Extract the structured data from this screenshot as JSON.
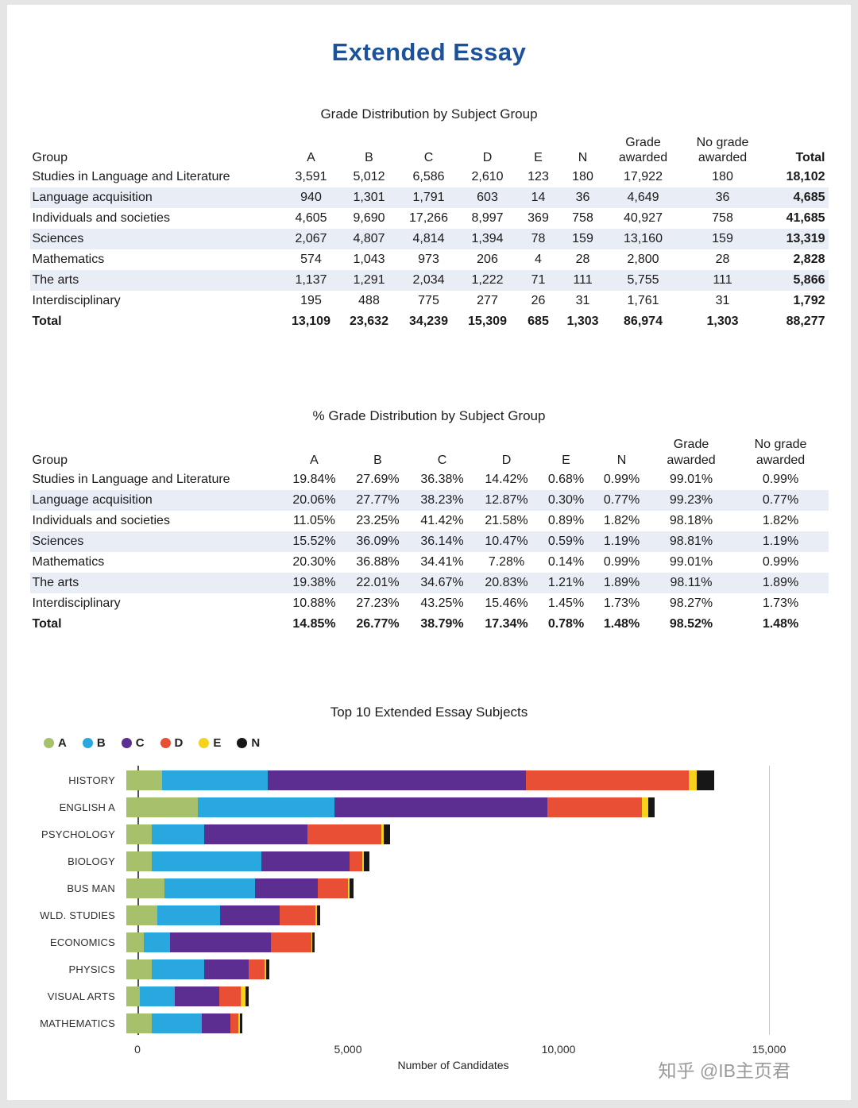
{
  "page": {
    "title": "Extended Essay",
    "watermark": "知乎 @IB主页君"
  },
  "table1": {
    "title": "Grade Distribution by Subject Group",
    "columns": [
      "Group",
      "A",
      "B",
      "C",
      "D",
      "E",
      "N",
      "Grade awarded",
      "No grade awarded",
      "Total"
    ],
    "rows": [
      [
        "Studies in Language and Literature",
        "3,591",
        "5,012",
        "6,586",
        "2,610",
        "123",
        "180",
        "17,922",
        "180",
        "18,102"
      ],
      [
        "Language acquisition",
        "940",
        "1,301",
        "1,791",
        "603",
        "14",
        "36",
        "4,649",
        "36",
        "4,685"
      ],
      [
        "Individuals and societies",
        "4,605",
        "9,690",
        "17,266",
        "8,997",
        "369",
        "758",
        "40,927",
        "758",
        "41,685"
      ],
      [
        "Sciences",
        "2,067",
        "4,807",
        "4,814",
        "1,394",
        "78",
        "159",
        "13,160",
        "159",
        "13,319"
      ],
      [
        "Mathematics",
        "574",
        "1,043",
        "973",
        "206",
        "4",
        "28",
        "2,800",
        "28",
        "2,828"
      ],
      [
        "The arts",
        "1,137",
        "1,291",
        "2,034",
        "1,222",
        "71",
        "111",
        "5,755",
        "111",
        "5,866"
      ],
      [
        "Interdisciplinary",
        "195",
        "488",
        "775",
        "277",
        "26",
        "31",
        "1,761",
        "31",
        "1,792"
      ],
      [
        "Total",
        "13,109",
        "23,632",
        "34,239",
        "15,309",
        "685",
        "1,303",
        "86,974",
        "1,303",
        "88,277"
      ]
    ]
  },
  "table2": {
    "title": "% Grade Distribution by Subject Group",
    "columns": [
      "Group",
      "A",
      "B",
      "C",
      "D",
      "E",
      "N",
      "Grade awarded",
      "No grade awarded"
    ],
    "rows": [
      [
        "Studies in Language and Literature",
        "19.84%",
        "27.69%",
        "36.38%",
        "14.42%",
        "0.68%",
        "0.99%",
        "99.01%",
        "0.99%"
      ],
      [
        "Language acquisition",
        "20.06%",
        "27.77%",
        "38.23%",
        "12.87%",
        "0.30%",
        "0.77%",
        "99.23%",
        "0.77%"
      ],
      [
        "Individuals and societies",
        "11.05%",
        "23.25%",
        "41.42%",
        "21.58%",
        "0.89%",
        "1.82%",
        "98.18%",
        "1.82%"
      ],
      [
        "Sciences",
        "15.52%",
        "36.09%",
        "36.14%",
        "10.47%",
        "0.59%",
        "1.19%",
        "98.81%",
        "1.19%"
      ],
      [
        "Mathematics",
        "20.30%",
        "36.88%",
        "34.41%",
        "7.28%",
        "0.14%",
        "0.99%",
        "99.01%",
        "0.99%"
      ],
      [
        "The arts",
        "19.38%",
        "22.01%",
        "34.67%",
        "20.83%",
        "1.21%",
        "1.89%",
        "98.11%",
        "1.89%"
      ],
      [
        "Interdisciplinary",
        "10.88%",
        "27.23%",
        "43.25%",
        "15.46%",
        "1.45%",
        "1.73%",
        "98.27%",
        "1.73%"
      ],
      [
        "Total",
        "14.85%",
        "26.77%",
        "38.79%",
        "17.34%",
        "0.78%",
        "1.48%",
        "98.52%",
        "1.48%"
      ]
    ]
  },
  "chart_data": {
    "type": "bar",
    "orientation": "horizontal",
    "title": "Top 10 Extended Essay Subjects",
    "xlabel": "Number of Candidates",
    "xlim": [
      0,
      15000
    ],
    "xticks": [
      0,
      5000,
      10000,
      15000
    ],
    "xtick_labels": [
      "0",
      "5,000",
      "10,000",
      "15,000"
    ],
    "legend": [
      "A",
      "B",
      "C",
      "D",
      "E",
      "N"
    ],
    "legend_position": "top-left",
    "grid": "vertical line at 15,000 only",
    "colors": {
      "A": "#a6c06c",
      "B": "#29a8e0",
      "C": "#5c2e91",
      "D": "#e94f35",
      "E": "#f6d21c",
      "N": "#171717"
    },
    "categories": [
      "HISTORY",
      "ENGLISH A",
      "PSYCHOLOGY",
      "BIOLOGY",
      "BUS MAN",
      "WLD. STUDIES",
      "ECONOMICS",
      "PHYSICS",
      "VISUAL ARTS",
      "MATHEMATICS"
    ],
    "series": [
      {
        "name": "A",
        "values": [
          850,
          1700,
          600,
          600,
          900,
          740,
          420,
          600,
          330,
          600
        ]
      },
      {
        "name": "B",
        "values": [
          2500,
          3250,
          1250,
          2600,
          2150,
          1480,
          620,
          1250,
          820,
          1200
        ]
      },
      {
        "name": "C",
        "values": [
          6150,
          5050,
          2450,
          2100,
          1500,
          1420,
          2400,
          1050,
          1050,
          670
        ]
      },
      {
        "name": "D",
        "values": [
          3850,
          2250,
          1750,
          300,
          720,
          850,
          950,
          380,
          510,
          200
        ]
      },
      {
        "name": "E",
        "values": [
          200,
          140,
          60,
          50,
          30,
          40,
          30,
          40,
          130,
          30
        ]
      },
      {
        "name": "N",
        "values": [
          420,
          160,
          150,
          120,
          100,
          80,
          60,
          70,
          60,
          60
        ]
      }
    ],
    "totals_approx": [
      13970,
      12550,
      6260,
      5770,
      5400,
      4610,
      4480,
      3390,
      2900,
      2760
    ]
  }
}
